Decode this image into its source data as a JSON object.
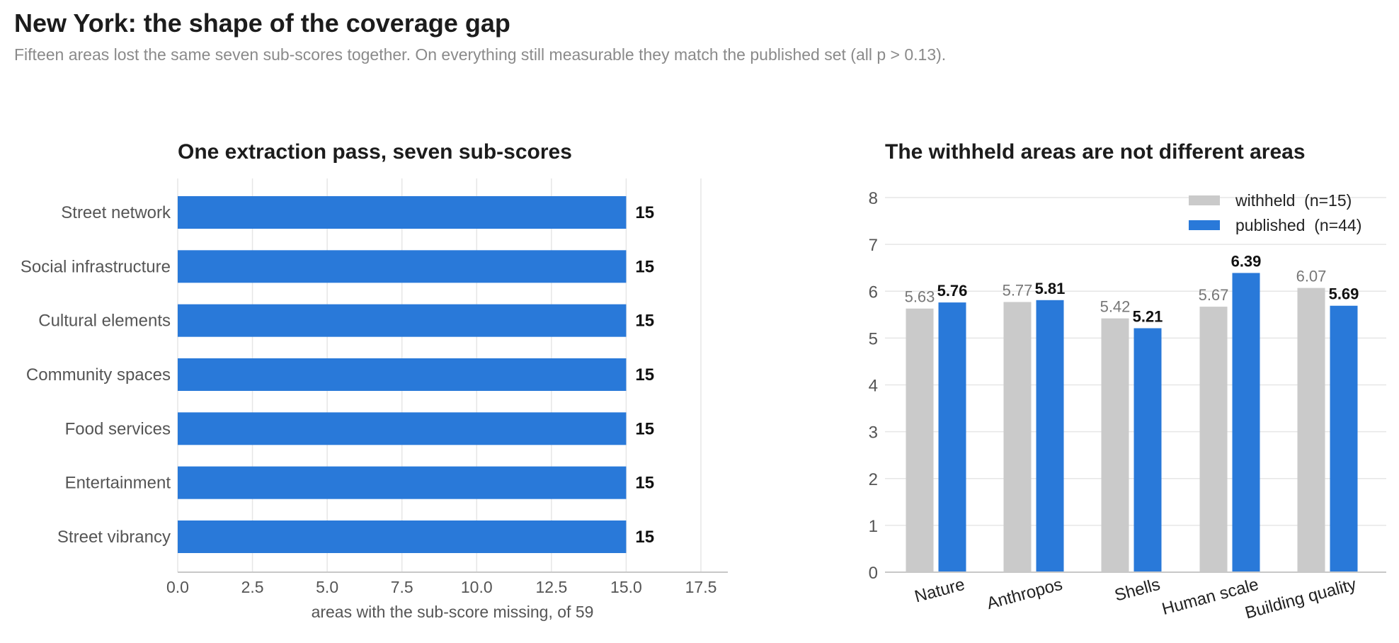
{
  "page": {
    "title": "New York: the shape of the coverage gap",
    "subtitle": "Fifteen areas lost the same seven sub-scores together. On everything still measurable they match the published set (all p > 0.13)."
  },
  "colors": {
    "blue": "#2979d9",
    "gray": "#cacaca",
    "grid": "#e6e6e6",
    "axis": "#c8c8c8",
    "text": "#555555"
  },
  "chart_data": [
    {
      "type": "bar",
      "orientation": "horizontal",
      "title": "One extraction pass, seven sub-scores",
      "xlabel": "areas with the sub-score missing, of 59",
      "ylabel": "",
      "categories": [
        "Street network",
        "Social infrastructure",
        "Cultural elements",
        "Community spaces",
        "Food services",
        "Entertainment",
        "Street vibrancy"
      ],
      "values": [
        15,
        15,
        15,
        15,
        15,
        15,
        15
      ],
      "xlim": [
        0,
        18.4
      ],
      "xticks": [
        "0.0",
        "2.5",
        "5.0",
        "7.5",
        "10.0",
        "12.5",
        "15.0",
        "17.5"
      ],
      "grid": "vertical",
      "data_labels": true
    },
    {
      "type": "bar",
      "title": "The withheld areas are not different areas",
      "xlabel": "",
      "ylabel": "",
      "categories": [
        "Nature",
        "Anthropos",
        "Shells",
        "Human scale",
        "Building quality"
      ],
      "series": [
        {
          "name": "withheld  (n=15)",
          "values": [
            5.63,
            5.77,
            5.42,
            5.67,
            6.07
          ]
        },
        {
          "name": "published  (n=44)",
          "values": [
            5.76,
            5.81,
            5.21,
            6.39,
            5.69
          ]
        }
      ],
      "value_labels": [
        [
          "5.63",
          "5.77",
          "5.42",
          "5.67",
          "6.07"
        ],
        [
          "5.76",
          "5.81",
          "5.21",
          "6.39",
          "5.69"
        ]
      ],
      "ylim": [
        0,
        8.4
      ],
      "yticks": [
        "0",
        "1",
        "2",
        "3",
        "4",
        "5",
        "6",
        "7",
        "8"
      ],
      "grid": "horizontal",
      "legend": "top-right",
      "data_labels": true
    }
  ]
}
